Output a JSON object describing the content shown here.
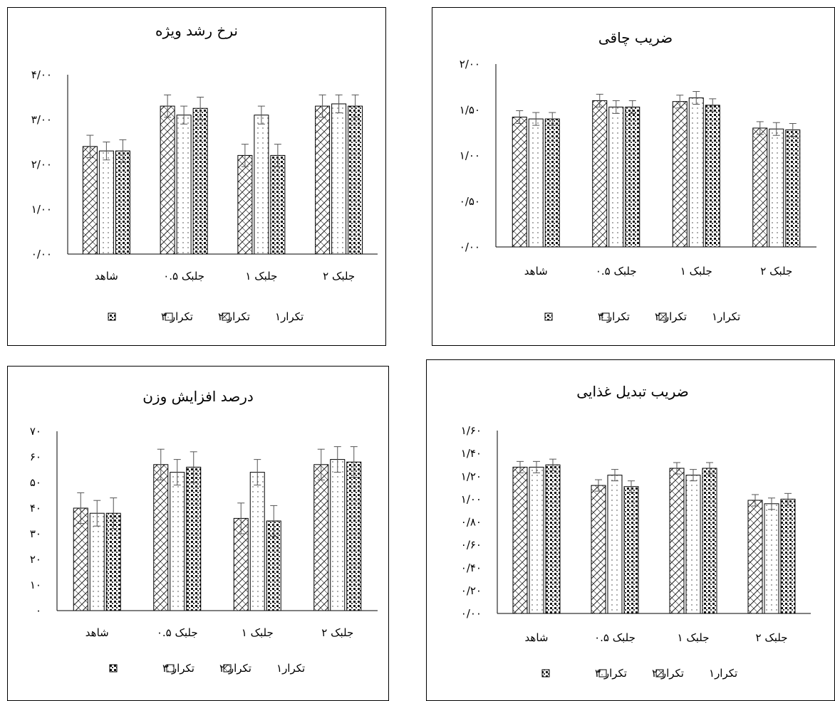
{
  "chart_data": [
    {
      "type": "bar",
      "title": "نرخ رشد ویژه",
      "categories": [
        "شاهد",
        "جلبک ۰.۵",
        "جلبک ۱",
        "جلبک ۲"
      ],
      "y_ticks": [
        "۰/۰۰",
        "۱/۰۰",
        "۲/۰۰",
        "۳/۰۰",
        "۴/۰۰"
      ],
      "ylim": [
        0,
        4
      ],
      "series": [
        {
          "name": "تکرار۱",
          "pattern": "hatch",
          "values": [
            2.4,
            3.3,
            2.2,
            3.3
          ],
          "errors": [
            0.25,
            0.25,
            0.25,
            0.25
          ]
        },
        {
          "name": "تکرار ۲",
          "pattern": "dots",
          "values": [
            2.3,
            3.1,
            3.1,
            3.35
          ],
          "errors": [
            0.2,
            0.2,
            0.2,
            0.2
          ]
        },
        {
          "name": "تکرار ۳",
          "pattern": "grid",
          "values": [
            2.3,
            3.25,
            2.2,
            3.3
          ],
          "errors": [
            0.25,
            0.25,
            0.25,
            0.25
          ]
        }
      ],
      "legend_position": "bottom"
    },
    {
      "type": "bar",
      "title": "ضریب چاقی",
      "categories": [
        "شاهد",
        "جلبک ۰.۵",
        "جلبک ۱",
        "جلبک ۲"
      ],
      "y_ticks": [
        "۰/۰۰",
        "۰/۵۰",
        "۱/۰۰",
        "۱/۵۰",
        "۲/۰۰"
      ],
      "ylim": [
        0,
        2
      ],
      "series": [
        {
          "name": "تکرار۱",
          "pattern": "hatch",
          "values": [
            1.42,
            1.6,
            1.59,
            1.3
          ],
          "errors": [
            0.07,
            0.07,
            0.07,
            0.07
          ]
        },
        {
          "name": "تکرار ۲",
          "pattern": "dots",
          "values": [
            1.4,
            1.53,
            1.63,
            1.29
          ],
          "errors": [
            0.07,
            0.07,
            0.07,
            0.07
          ]
        },
        {
          "name": "تکرار ۳",
          "pattern": "grid",
          "values": [
            1.4,
            1.53,
            1.55,
            1.28
          ],
          "errors": [
            0.07,
            0.07,
            0.07,
            0.07
          ]
        }
      ],
      "legend_position": "bottom"
    },
    {
      "type": "bar",
      "title": "درصد افزایش وزن",
      "categories": [
        "شاهد",
        "جلبک ۰.۵",
        "جلبک ۱",
        "جلبک ۲"
      ],
      "y_ticks": [
        "۰",
        "۱۰",
        "۲۰",
        "۳۰",
        "۴۰",
        "۵۰",
        "۶۰",
        "۷۰"
      ],
      "ylim": [
        0,
        70
      ],
      "series": [
        {
          "name": "تکرار۱",
          "pattern": "hatch",
          "values": [
            40,
            57,
            36,
            57
          ],
          "errors": [
            6,
            6,
            6,
            6
          ]
        },
        {
          "name": "تکرار ۲",
          "pattern": "dots",
          "values": [
            38,
            54,
            54,
            59
          ],
          "errors": [
            5,
            5,
            5,
            5
          ]
        },
        {
          "name": "تکرار ۳",
          "pattern": "grid",
          "values": [
            38,
            56,
            35,
            58
          ],
          "errors": [
            6,
            6,
            6,
            6
          ]
        }
      ],
      "legend_position": "bottom"
    },
    {
      "type": "bar",
      "title": "ضریب تبدیل غذایی",
      "categories": [
        "شاهد",
        "جلبک ۰.۵",
        "جلبک ۱",
        "جلبک ۲"
      ],
      "y_ticks": [
        "۰/۰۰",
        "۰/۲۰",
        "۰/۴۰",
        "۰/۶۰",
        "۰/۸۰",
        "۱/۰۰",
        "۱/۲۰",
        "۱/۴۰",
        "۱/۶۰"
      ],
      "ylim": [
        0,
        1.6
      ],
      "series": [
        {
          "name": "تکرار۱",
          "pattern": "hatch",
          "values": [
            1.28,
            1.12,
            1.27,
            0.99
          ],
          "errors": [
            0.05,
            0.05,
            0.05,
            0.05
          ]
        },
        {
          "name": "تکرار ۲",
          "pattern": "dots",
          "values": [
            1.28,
            1.21,
            1.21,
            0.96
          ],
          "errors": [
            0.05,
            0.05,
            0.05,
            0.05
          ]
        },
        {
          "name": "تکرار ۳",
          "pattern": "grid",
          "values": [
            1.3,
            1.11,
            1.27,
            1.0
          ],
          "errors": [
            0.05,
            0.05,
            0.05,
            0.05
          ]
        }
      ],
      "legend_position": "bottom"
    }
  ]
}
